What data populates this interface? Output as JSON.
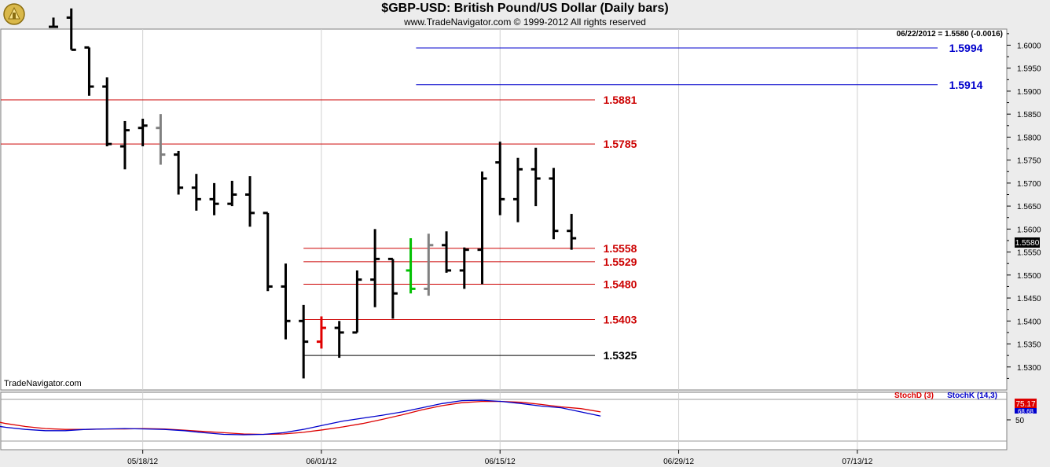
{
  "header": {
    "title": "$GBP-USD:  British Pound/US Dollar  (Daily bars)",
    "copyright": "www.TradeNavigator.com © 1999-2012 All rights reserved"
  },
  "price_panel": {
    "readout": "06/22/2012 = 1.5580 (-0.0016)",
    "watermark": "TradeNavigator.com",
    "last_price_label": "1.5580"
  },
  "indicator_panel": {
    "stochd_label": "StochD (3)",
    "stochk_label": "StochK (14,3)",
    "stochd_value_label": "75.17",
    "stochk_value_label": "68.68",
    "axis_label": "50"
  },
  "colors": {
    "panel_bg": "#ffffff",
    "frame_bg": "#ececec",
    "bar_up_down": "#000000",
    "bar_gray": "#808080",
    "bar_red": "#e00000",
    "bar_green": "#00c000",
    "red_level": "#cc0000",
    "blue_level": "#0000cc",
    "black_level": "#000000",
    "stochd": "#dd0000",
    "stochk": "#0000cc"
  },
  "chart_data": [
    {
      "type": "ohlc",
      "ylim": [
        1.525,
        1.6035
      ],
      "yticks": [
        "1.5300",
        "1.5350",
        "1.5400",
        "1.5450",
        "1.5500",
        "1.5550",
        "1.5600",
        "1.5650",
        "1.5700",
        "1.5750",
        "1.5800",
        "1.5850",
        "1.5900",
        "1.5950",
        "1.6000"
      ],
      "xticks": [
        {
          "label": "05/18/12",
          "index": 5
        },
        {
          "label": "06/01/12",
          "index": 15
        },
        {
          "label": "06/15/12",
          "index": 25
        },
        {
          "label": "06/29/12",
          "index": 35
        },
        {
          "label": "07/13/12",
          "index": 45
        }
      ],
      "bars": [
        {
          "i": 0,
          "o": 1.604,
          "h": 1.606,
          "l": 1.604,
          "c": 1.604
        },
        {
          "i": 1,
          "o": 1.606,
          "h": 1.608,
          "l": 1.599,
          "c": 1.599
        },
        {
          "i": 2,
          "o": 1.5995,
          "h": 1.5995,
          "l": 1.589,
          "c": 1.591
        },
        {
          "i": 3,
          "o": 1.591,
          "h": 1.593,
          "l": 1.578,
          "c": 1.5785
        },
        {
          "i": 4,
          "o": 1.578,
          "h": 1.5835,
          "l": 1.573,
          "c": 1.5815
        },
        {
          "i": 5,
          "o": 1.582,
          "h": 1.584,
          "l": 1.578,
          "c": 1.5825
        },
        {
          "i": 6,
          "o": 1.582,
          "h": 1.585,
          "l": 1.574,
          "c": 1.5762,
          "color": "gray"
        },
        {
          "i": 7,
          "o": 1.5762,
          "h": 1.577,
          "l": 1.5675,
          "c": 1.569
        },
        {
          "i": 8,
          "o": 1.569,
          "h": 1.572,
          "l": 1.564,
          "c": 1.5665
        },
        {
          "i": 9,
          "o": 1.5665,
          "h": 1.57,
          "l": 1.563,
          "c": 1.5655
        },
        {
          "i": 10,
          "o": 1.5655,
          "h": 1.5705,
          "l": 1.565,
          "c": 1.5675
        },
        {
          "i": 11,
          "o": 1.5675,
          "h": 1.5715,
          "l": 1.5605,
          "c": 1.5635
        },
        {
          "i": 12,
          "o": 1.5635,
          "h": 1.5635,
          "l": 1.5465,
          "c": 1.5475
        },
        {
          "i": 13,
          "o": 1.5475,
          "h": 1.5525,
          "l": 1.536,
          "c": 1.54
        },
        {
          "i": 14,
          "o": 1.54,
          "h": 1.5435,
          "l": 1.5275,
          "c": 1.5355
        },
        {
          "i": 15,
          "o": 1.5355,
          "h": 1.541,
          "l": 1.534,
          "c": 1.5385,
          "color": "red"
        },
        {
          "i": 16,
          "o": 1.5385,
          "h": 1.54,
          "l": 1.532,
          "c": 1.5375
        },
        {
          "i": 17,
          "o": 1.5375,
          "h": 1.551,
          "l": 1.5375,
          "c": 1.549
        },
        {
          "i": 18,
          "o": 1.549,
          "h": 1.56,
          "l": 1.543,
          "c": 1.5535
        },
        {
          "i": 19,
          "o": 1.5535,
          "h": 1.5535,
          "l": 1.5405,
          "c": 1.546
        },
        {
          "i": 20,
          "o": 1.551,
          "h": 1.558,
          "l": 1.546,
          "c": 1.547,
          "color": "green"
        },
        {
          "i": 21,
          "o": 1.547,
          "h": 1.559,
          "l": 1.5455,
          "c": 1.5565,
          "color": "gray"
        },
        {
          "i": 22,
          "o": 1.5565,
          "h": 1.5595,
          "l": 1.5505,
          "c": 1.551
        },
        {
          "i": 23,
          "o": 1.551,
          "h": 1.556,
          "l": 1.547,
          "c": 1.5555
        },
        {
          "i": 24,
          "o": 1.5555,
          "h": 1.5725,
          "l": 1.548,
          "c": 1.571
        },
        {
          "i": 25,
          "o": 1.5745,
          "h": 1.579,
          "l": 1.563,
          "c": 1.5665
        },
        {
          "i": 26,
          "o": 1.5665,
          "h": 1.5755,
          "l": 1.5615,
          "c": 1.573
        },
        {
          "i": 27,
          "o": 1.573,
          "h": 1.5777,
          "l": 1.565,
          "c": 1.571
        },
        {
          "i": 28,
          "o": 1.571,
          "h": 1.5733,
          "l": 1.5578,
          "c": 1.5596
        },
        {
          "i": 29,
          "o": 1.5596,
          "h": 1.5633,
          "l": 1.5555,
          "c": 1.558
        }
      ],
      "levels": [
        {
          "value": 1.5994,
          "label": "1.5994",
          "color": "blue",
          "from_index": 20.3
        },
        {
          "value": 1.5914,
          "label": "1.5914",
          "color": "blue",
          "from_index": 20.3
        },
        {
          "value": 1.5881,
          "label": "1.5881",
          "color": "red",
          "from_index": -5
        },
        {
          "value": 1.5785,
          "label": "1.5785",
          "color": "red",
          "from_index": -5
        },
        {
          "value": 1.5558,
          "label": "1.5558",
          "color": "red",
          "from_index": 14
        },
        {
          "value": 1.5529,
          "label": "1.5529",
          "color": "red",
          "from_index": 14
        },
        {
          "value": 1.548,
          "label": "1.5480",
          "color": "red",
          "from_index": 14
        },
        {
          "value": 1.5403,
          "label": "1.5403",
          "color": "red",
          "from_index": 14
        },
        {
          "value": 1.5325,
          "label": "1.5325",
          "color": "black",
          "from_index": 14
        }
      ]
    },
    {
      "type": "line",
      "ylim": [
        0,
        100
      ],
      "yticks": [
        "50"
      ],
      "series": [
        {
          "name": "StochD (3)",
          "values": [
            78,
            65,
            52,
            42,
            35,
            30,
            28,
            28,
            29,
            29,
            30,
            29,
            26,
            23,
            20,
            17,
            16,
            17,
            21,
            27,
            34,
            42,
            52,
            63,
            75,
            85,
            92,
            95,
            95,
            93,
            88,
            82,
            78,
            70
          ]
        },
        {
          "name": "StochK (14,3)",
          "values": [
            62,
            50,
            40,
            33,
            28,
            25,
            25,
            28,
            29,
            30,
            29,
            28,
            25,
            20,
            16,
            15,
            16,
            20,
            28,
            38,
            48,
            55,
            62,
            70,
            80,
            90,
            97,
            98,
            95,
            90,
            84,
            80,
            70,
            60
          ]
        }
      ],
      "x_start_index": -6,
      "x_step": 0.33
    }
  ]
}
